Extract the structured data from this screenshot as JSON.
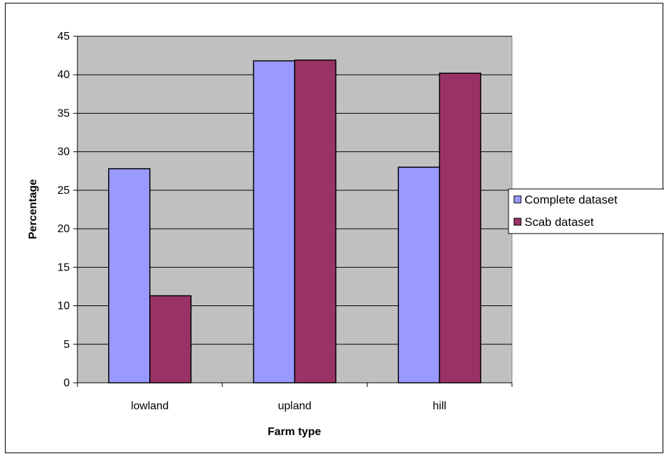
{
  "chart_data": {
    "type": "bar",
    "title": "",
    "xlabel": "Farm type",
    "ylabel": "Percentage",
    "categories": [
      "lowland",
      "upland",
      "hill"
    ],
    "series": [
      {
        "name": "Complete dataset",
        "values": [
          27.8,
          41.8,
          28.0
        ],
        "color": "#9999ff"
      },
      {
        "name": "Scab dataset",
        "values": [
          11.3,
          41.9,
          40.2
        ],
        "color": "#993366"
      }
    ],
    "ylim": [
      0,
      45
    ],
    "yticks": [
      "0",
      "5",
      "10",
      "15",
      "20",
      "25",
      "30",
      "35",
      "40",
      "45"
    ],
    "plot_background": "#c0c0c0",
    "grid": true,
    "legend_position": "right"
  }
}
